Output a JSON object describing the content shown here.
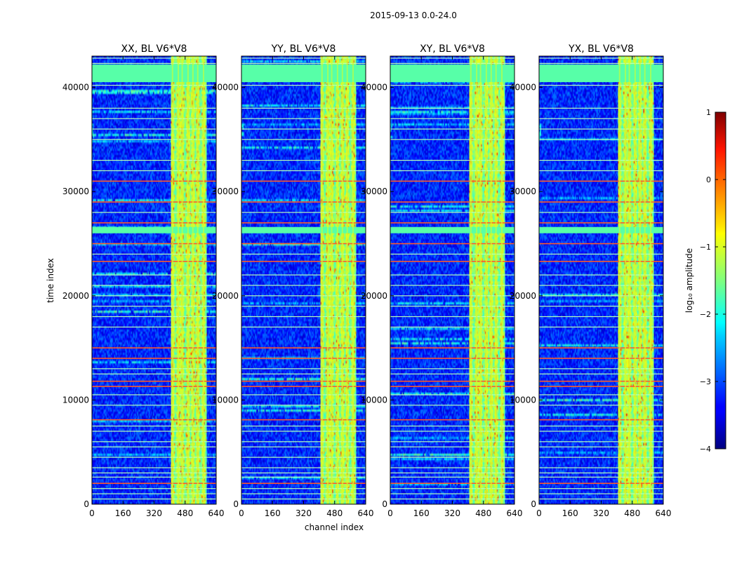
{
  "chart_data": {
    "type": "heatmap",
    "suptitle": "2015-09-13 0.0-24.0",
    "colormap": "jet",
    "panels": [
      {
        "title": "XX, BL V6*V8",
        "seed": 11
      },
      {
        "title": "YY, BL V6*V8",
        "seed": 23
      },
      {
        "title": "XY, BL V6*V8",
        "seed": 37
      },
      {
        "title": "YX, BL V6*V8",
        "seed": 53
      }
    ],
    "xlabel": "channel index",
    "ylabel": "time index",
    "xlim": [
      0,
      640
    ],
    "ylim": [
      0,
      43000
    ],
    "xticks": [
      0,
      160,
      320,
      480,
      640
    ],
    "yticks": [
      0,
      10000,
      20000,
      30000,
      40000
    ],
    "colorbar": {
      "label": "log₁₀ amplitude",
      "vmin": -4,
      "vmax": 1,
      "ticks": [
        -4,
        -3,
        -2,
        -1,
        0,
        1
      ],
      "tick_labels": [
        "−4",
        "−3",
        "−2",
        "−1",
        "0",
        "1"
      ]
    },
    "features": {
      "background_level": -3.2,
      "flagged_level": -1.7,
      "flagged_time_ranges": [
        [
          40500,
          42200
        ],
        [
          26000,
          26600
        ]
      ],
      "rfi_channel_band": [
        405,
        590
      ],
      "rfi_channels": [
        415,
        445,
        465,
        495,
        520,
        545,
        575
      ],
      "red_time_rows": [
        31000,
        29000,
        27000,
        25000,
        23300,
        15000,
        14000,
        11800,
        11300,
        8100,
        2000
      ],
      "bright_time_rows": [
        42800,
        42300,
        40200,
        38000,
        37000,
        36000,
        35000,
        33000,
        32000,
        28000,
        24000,
        22000,
        21000,
        20000,
        19000,
        18000,
        17000,
        13000,
        12500,
        10500,
        9500,
        7500,
        7000,
        6000,
        5500,
        4500,
        3500,
        3000,
        2600,
        1500,
        1000,
        500
      ]
    }
  }
}
